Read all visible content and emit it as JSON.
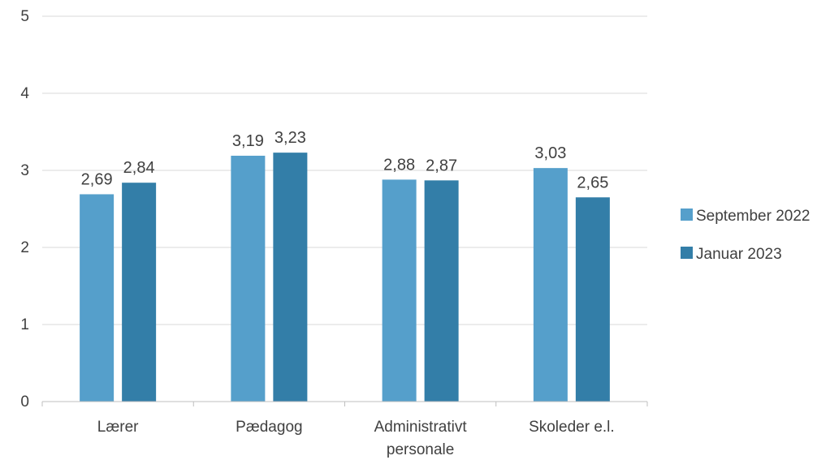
{
  "chart_data": {
    "type": "bar",
    "categories": [
      [
        "Lærer"
      ],
      [
        "Pædagog"
      ],
      [
        "Administrativt",
        "personale"
      ],
      [
        "Skoleder e.l."
      ]
    ],
    "series": [
      {
        "name": "September 2022",
        "values": [
          2.69,
          3.19,
          2.88,
          3.03
        ],
        "value_labels": [
          "2,69",
          "3,19",
          "2,88",
          "3,03"
        ],
        "color": "#559FCB"
      },
      {
        "name": "Januar 2023",
        "values": [
          2.84,
          3.23,
          2.87,
          2.65
        ],
        "value_labels": [
          "2,84",
          "3,23",
          "2,87",
          "2,65"
        ],
        "color": "#337EA8"
      }
    ],
    "y_ticks": [
      0,
      1,
      2,
      3,
      4,
      5
    ],
    "ylim": [
      0,
      5
    ],
    "grid": true,
    "legend_position": "right"
  }
}
